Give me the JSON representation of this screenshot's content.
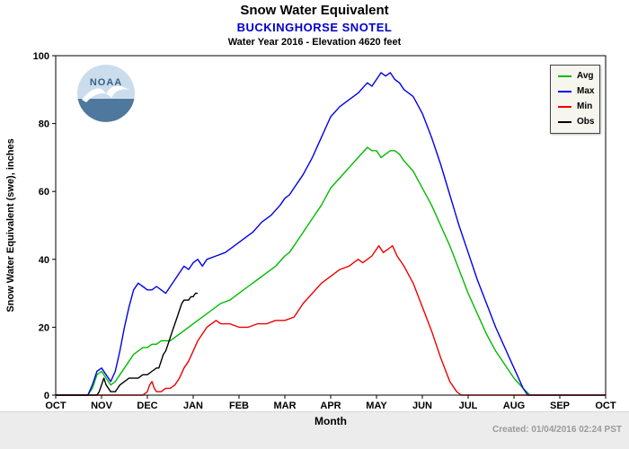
{
  "footer": {
    "created": "Created: 01/04/2016 02:24 PST"
  },
  "watermark": {
    "label": "NOAA"
  },
  "chart_data": {
    "type": "line",
    "title": "Snow Water Equivalent",
    "station": "BUCKINGHORSE SNOTEL",
    "subtitle": "Water Year 2016 - Elevation 4620 feet",
    "xlabel": "Month",
    "ylabel": "Snow Water Equivalent (swe),  inches",
    "x_units": "month index, OCT = 0 (water year)",
    "x_tick_labels": [
      "OCT",
      "NOV",
      "DEC",
      "JAN",
      "FEB",
      "MAR",
      "APR",
      "MAY",
      "JUN",
      "JUL",
      "AUG",
      "SEP",
      "OCT"
    ],
    "xlim": [
      0,
      12
    ],
    "y_ticks": [
      0,
      20,
      40,
      60,
      80,
      100
    ],
    "ylim": [
      0,
      100
    ],
    "grid": false,
    "legend_position": "top-right",
    "series": [
      {
        "name": "Avg",
        "color": "#00bb00",
        "x": [
          0,
          0.7,
          0.8,
          0.9,
          1.0,
          1.1,
          1.2,
          1.3,
          1.4,
          1.5,
          1.6,
          1.7,
          1.8,
          1.9,
          2.0,
          2.1,
          2.2,
          2.3,
          2.4,
          2.5,
          2.6,
          2.7,
          2.8,
          2.9,
          3.0,
          3.1,
          3.2,
          3.4,
          3.6,
          3.8,
          4.0,
          4.2,
          4.4,
          4.6,
          4.8,
          5.0,
          5.1,
          5.2,
          5.4,
          5.6,
          5.8,
          6.0,
          6.2,
          6.4,
          6.6,
          6.8,
          6.9,
          7.0,
          7.1,
          7.2,
          7.3,
          7.4,
          7.5,
          7.6,
          7.8,
          8.0,
          8.2,
          8.4,
          8.6,
          8.8,
          9.0,
          9.2,
          9.4,
          9.6,
          9.8,
          10.0,
          10.2,
          10.35,
          10.5,
          11.0,
          12.0
        ],
        "y": [
          0,
          0,
          2,
          6,
          7,
          5,
          3,
          4,
          6,
          8,
          10,
          12,
          13,
          14,
          14,
          15,
          15,
          16,
          16,
          16,
          17,
          18,
          19,
          20,
          21,
          22,
          23,
          25,
          27,
          28,
          30,
          32,
          34,
          36,
          38,
          41,
          42,
          44,
          48,
          52,
          56,
          61,
          64,
          67,
          70,
          73,
          72,
          72,
          70,
          71,
          72,
          72,
          71,
          69,
          66,
          61,
          56,
          50,
          44,
          37,
          30,
          24,
          18,
          13,
          9,
          5,
          2,
          0,
          0,
          0,
          0
        ]
      },
      {
        "name": "Max",
        "color": "#0000ee",
        "x": [
          0,
          0.7,
          0.8,
          0.9,
          1.0,
          1.1,
          1.2,
          1.3,
          1.4,
          1.5,
          1.6,
          1.7,
          1.8,
          1.9,
          2.0,
          2.1,
          2.2,
          2.3,
          2.4,
          2.5,
          2.6,
          2.7,
          2.8,
          2.9,
          3.0,
          3.1,
          3.2,
          3.3,
          3.5,
          3.7,
          3.9,
          4.1,
          4.3,
          4.5,
          4.7,
          4.9,
          5.0,
          5.1,
          5.2,
          5.4,
          5.6,
          5.8,
          6.0,
          6.2,
          6.4,
          6.6,
          6.8,
          6.9,
          7.0,
          7.1,
          7.2,
          7.3,
          7.4,
          7.5,
          7.6,
          7.8,
          8.0,
          8.2,
          8.4,
          8.6,
          8.8,
          9.0,
          9.2,
          9.4,
          9.6,
          9.8,
          10.0,
          10.1,
          10.2,
          10.3,
          10.45,
          11.0,
          12.0
        ],
        "y": [
          0,
          0,
          3,
          7,
          8,
          6,
          4,
          7,
          13,
          20,
          26,
          31,
          33,
          32,
          31,
          31,
          32,
          31,
          30,
          32,
          34,
          36,
          38,
          37,
          39,
          40,
          38,
          40,
          41,
          42,
          44,
          46,
          48,
          51,
          53,
          56,
          58,
          59,
          61,
          65,
          70,
          76,
          82,
          85,
          87,
          89,
          92,
          91,
          93,
          95,
          94,
          95,
          93,
          92,
          90,
          88,
          83,
          76,
          68,
          59,
          50,
          42,
          34,
          27,
          20,
          14,
          8,
          5,
          2,
          0,
          0,
          0,
          0
        ]
      },
      {
        "name": "Min",
        "color": "#ee0000",
        "x": [
          0,
          1.9,
          2.0,
          2.05,
          2.1,
          2.15,
          2.2,
          2.3,
          2.4,
          2.5,
          2.6,
          2.7,
          2.8,
          2.9,
          3.0,
          3.1,
          3.2,
          3.3,
          3.4,
          3.5,
          3.6,
          3.8,
          4.0,
          4.2,
          4.4,
          4.6,
          4.8,
          5.0,
          5.2,
          5.3,
          5.4,
          5.6,
          5.8,
          6.0,
          6.2,
          6.4,
          6.5,
          6.6,
          6.7,
          6.8,
          6.9,
          7.0,
          7.05,
          7.15,
          7.25,
          7.35,
          7.45,
          7.6,
          7.8,
          8.0,
          8.2,
          8.4,
          8.6,
          8.75,
          8.85,
          9.0,
          10.0,
          11.0,
          12.0
        ],
        "y": [
          0,
          0,
          1,
          3,
          4,
          2,
          1,
          1,
          2,
          2,
          3,
          5,
          8,
          10,
          13,
          16,
          18,
          20,
          21,
          22,
          21,
          21,
          20,
          20,
          21,
          21,
          22,
          22,
          23,
          25,
          27,
          30,
          33,
          35,
          37,
          38,
          39,
          40,
          39,
          40,
          41,
          43,
          44,
          42,
          43,
          44,
          41,
          38,
          33,
          26,
          19,
          11,
          4,
          1,
          0,
          0,
          0,
          0,
          0
        ]
      },
      {
        "name": "Obs",
        "color": "#000000",
        "x": [
          0,
          0.9,
          0.95,
          1.0,
          1.05,
          1.1,
          1.2,
          1.3,
          1.35,
          1.4,
          1.5,
          1.6,
          1.7,
          1.8,
          1.9,
          2.0,
          2.1,
          2.2,
          2.25,
          2.3,
          2.35,
          2.4,
          2.45,
          2.5,
          2.55,
          2.6,
          2.65,
          2.7,
          2.75,
          2.8,
          2.9,
          2.95,
          3.0,
          3.05,
          3.1
        ],
        "y": [
          0,
          0,
          1,
          3,
          5,
          3,
          1,
          1,
          2,
          3,
          4,
          5,
          5,
          5,
          6,
          6,
          7,
          8,
          8,
          10,
          12,
          13,
          15,
          17,
          19,
          21,
          23,
          25,
          27,
          28,
          28,
          29,
          29,
          30,
          30
        ]
      }
    ]
  }
}
